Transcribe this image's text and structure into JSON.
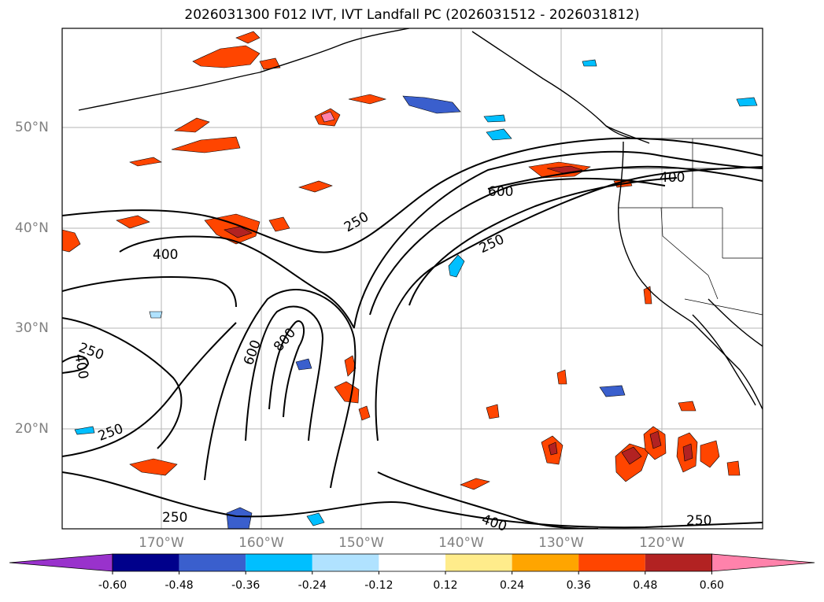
{
  "title": "2026031300 F012 IVT, IVT Landfall PC (2026031512 - 2026031812)",
  "lat_labels": [
    "50°N",
    "40°N",
    "30°N",
    "20°N"
  ],
  "lon_labels": [
    "170°W",
    "160°W",
    "150°W",
    "140°W",
    "130°W",
    "120°W"
  ],
  "contour_labels": [
    "400",
    "600",
    "250",
    "250",
    "400",
    "250",
    "400",
    "600",
    "800",
    "250",
    "250",
    "400",
    "250"
  ],
  "colorbar": {
    "ticks": [
      "-0.60",
      "-0.48",
      "-0.36",
      "-0.24",
      "-0.12",
      "0.12",
      "0.24",
      "0.36",
      "0.48",
      "0.60"
    ],
    "colors": [
      "#9932cc",
      "#00008b",
      "#3a5fcd",
      "#00bfff",
      "#b0e2ff",
      "#ffffff",
      "#ffec8b",
      "#ffa500",
      "#ff4500",
      "#b22222",
      "#ff82ab"
    ]
  },
  "grid": true
}
